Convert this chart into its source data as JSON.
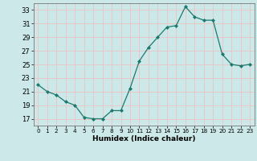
{
  "x": [
    0,
    1,
    2,
    3,
    4,
    5,
    6,
    7,
    8,
    9,
    10,
    11,
    12,
    13,
    14,
    15,
    16,
    17,
    18,
    19,
    20,
    21,
    22,
    23
  ],
  "y": [
    22,
    21,
    20.5,
    19.5,
    19,
    17.2,
    17.0,
    17,
    18.2,
    18.2,
    21.5,
    25.5,
    27.5,
    29,
    30.5,
    30.7,
    33.5,
    32,
    31.5,
    31.5,
    26.5,
    25,
    24.8,
    25
  ],
  "line_color": "#1a7a6e",
  "marker": "D",
  "marker_size": 2.0,
  "bg_color": "#cce8e8",
  "grid_color": "#e8c8c8",
  "xlabel": "Humidex (Indice chaleur)",
  "ylim": [
    16,
    34
  ],
  "xlim": [
    -0.5,
    23.5
  ],
  "yticks": [
    17,
    19,
    21,
    23,
    25,
    27,
    29,
    31,
    33
  ],
  "xticks": [
    0,
    1,
    2,
    3,
    4,
    5,
    6,
    7,
    8,
    9,
    10,
    11,
    12,
    13,
    14,
    15,
    16,
    17,
    18,
    19,
    20,
    21,
    22,
    23
  ]
}
